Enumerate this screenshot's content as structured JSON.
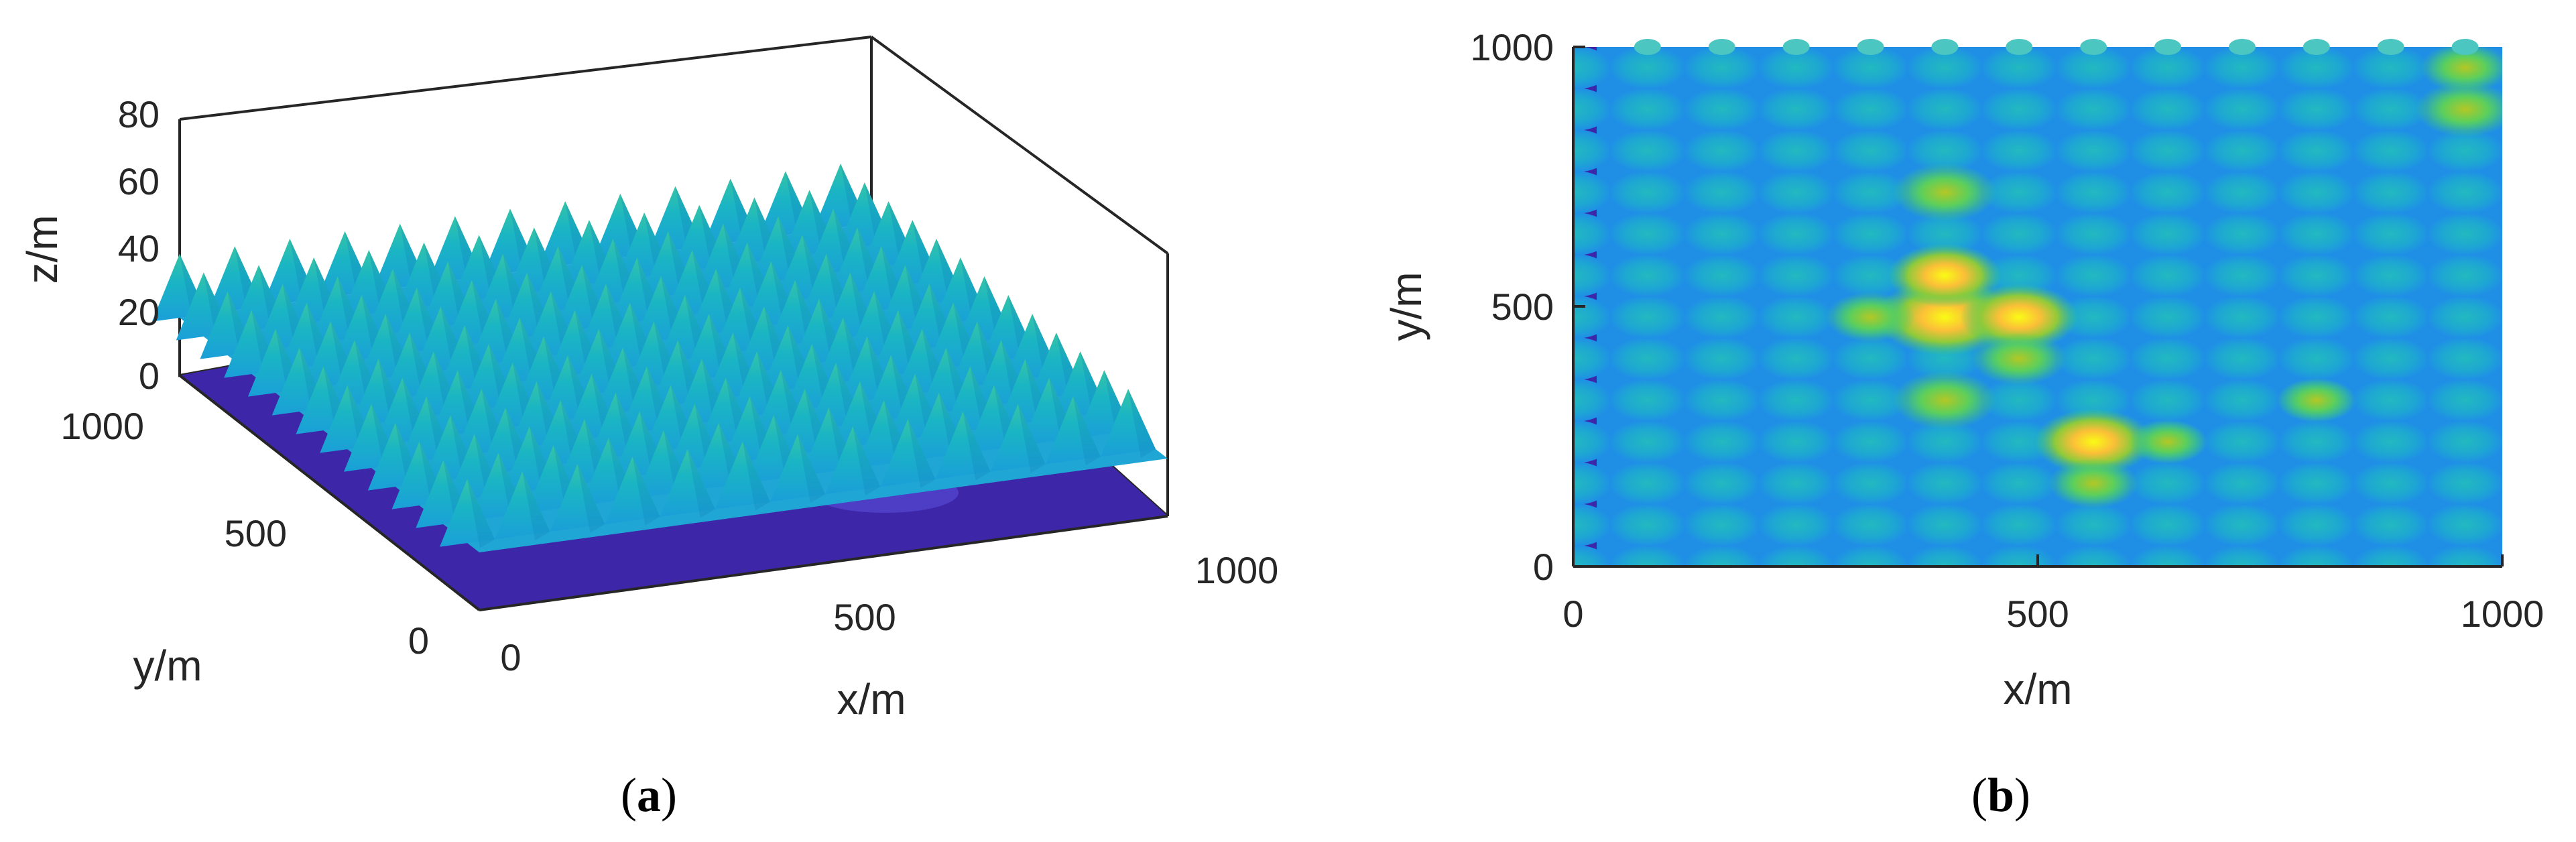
{
  "chart_data": [
    {
      "type": "surface",
      "panel": "a",
      "caption_open": "(",
      "caption_letter": "a",
      "caption_close": ")",
      "xlabel": "x/m",
      "ylabel": "y/m",
      "zlabel": "z/m",
      "xlim": [
        0,
        1000
      ],
      "ylim": [
        0,
        1000
      ],
      "zlim": [
        0,
        80
      ],
      "x_ticks": [
        "0",
        "500",
        "1000"
      ],
      "y_ticks": [
        "0",
        "500",
        "1000"
      ],
      "z_ticks": [
        "0",
        "20",
        "40",
        "60",
        "80"
      ],
      "grid_spacing": 80,
      "base_peak_height": 20,
      "tall_peaks": [
        {
          "x": 400,
          "y": 480,
          "z": 50
        },
        {
          "x": 400,
          "y": 560,
          "z": 35
        },
        {
          "x": 480,
          "y": 480,
          "z": 40
        },
        {
          "x": 400,
          "y": 320,
          "z": 35
        },
        {
          "x": 560,
          "y": 240,
          "z": 40
        },
        {
          "x": 320,
          "y": 400,
          "z": 30
        },
        {
          "x": 400,
          "y": 720,
          "z": 35
        },
        {
          "x": 960,
          "y": 880,
          "z": 60
        },
        {
          "x": 960,
          "y": 960,
          "z": 55
        }
      ],
      "colormap": [
        "#3e26a8",
        "#2e87f8",
        "#1ab5c4",
        "#42cc6b",
        "#b3c725",
        "#fbbf38",
        "#f9fb15"
      ]
    },
    {
      "type": "heatmap",
      "panel": "b",
      "caption_open": "(",
      "caption_letter": "b",
      "caption_close": ")",
      "xlabel": "x/m",
      "ylabel": "y/m",
      "xlim": [
        0,
        1000
      ],
      "ylim": [
        0,
        1000
      ],
      "x_ticks": [
        "0",
        "500",
        "1000"
      ],
      "y_ticks": [
        "0",
        "500",
        "1000"
      ],
      "grid_spacing": 80,
      "bright_spots": [
        {
          "x": 400,
          "y": 480,
          "z": 50
        },
        {
          "x": 480,
          "y": 480,
          "z": 42
        },
        {
          "x": 400,
          "y": 560,
          "z": 40
        },
        {
          "x": 400,
          "y": 720,
          "z": 36
        },
        {
          "x": 400,
          "y": 320,
          "z": 36
        },
        {
          "x": 560,
          "y": 240,
          "z": 42
        },
        {
          "x": 480,
          "y": 400,
          "z": 32
        },
        {
          "x": 320,
          "y": 480,
          "z": 30
        },
        {
          "x": 960,
          "y": 880,
          "z": 34
        },
        {
          "x": 960,
          "y": 960,
          "z": 30
        },
        {
          "x": 800,
          "y": 320,
          "z": 26
        },
        {
          "x": 560,
          "y": 160,
          "z": 30
        },
        {
          "x": 640,
          "y": 240,
          "z": 26
        }
      ],
      "colormap": [
        "#3e26a8",
        "#2e87f8",
        "#1ab5c4",
        "#42cc6b",
        "#b3c725",
        "#fbbf38",
        "#f9fb15"
      ]
    }
  ]
}
